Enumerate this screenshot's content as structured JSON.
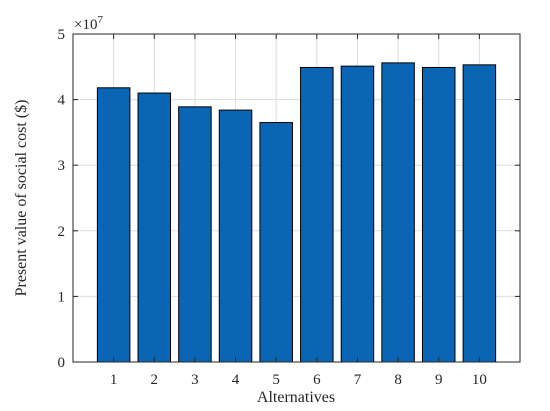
{
  "chart_data": {
    "type": "bar",
    "categories": [
      "1",
      "2",
      "3",
      "4",
      "5",
      "6",
      "7",
      "8",
      "9",
      "10"
    ],
    "values": [
      41800000,
      41000000,
      38900000,
      38400000,
      36500000,
      44900000,
      45100000,
      45600000,
      44900000,
      45300000
    ],
    "xlabel": "Alternatives",
    "ylabel": "Present value of social cost ($)",
    "ylim": [
      0,
      50000000
    ],
    "yticks": [
      0,
      1,
      2,
      3,
      4,
      5
    ],
    "ytick_labels": [
      "0",
      "1",
      "2",
      "3",
      "4",
      "5"
    ],
    "y_exponent_base": "×10",
    "y_exponent_power": "7",
    "grid": true,
    "bar_color": "#0a66b5",
    "bar_edge_color": "#000000"
  }
}
